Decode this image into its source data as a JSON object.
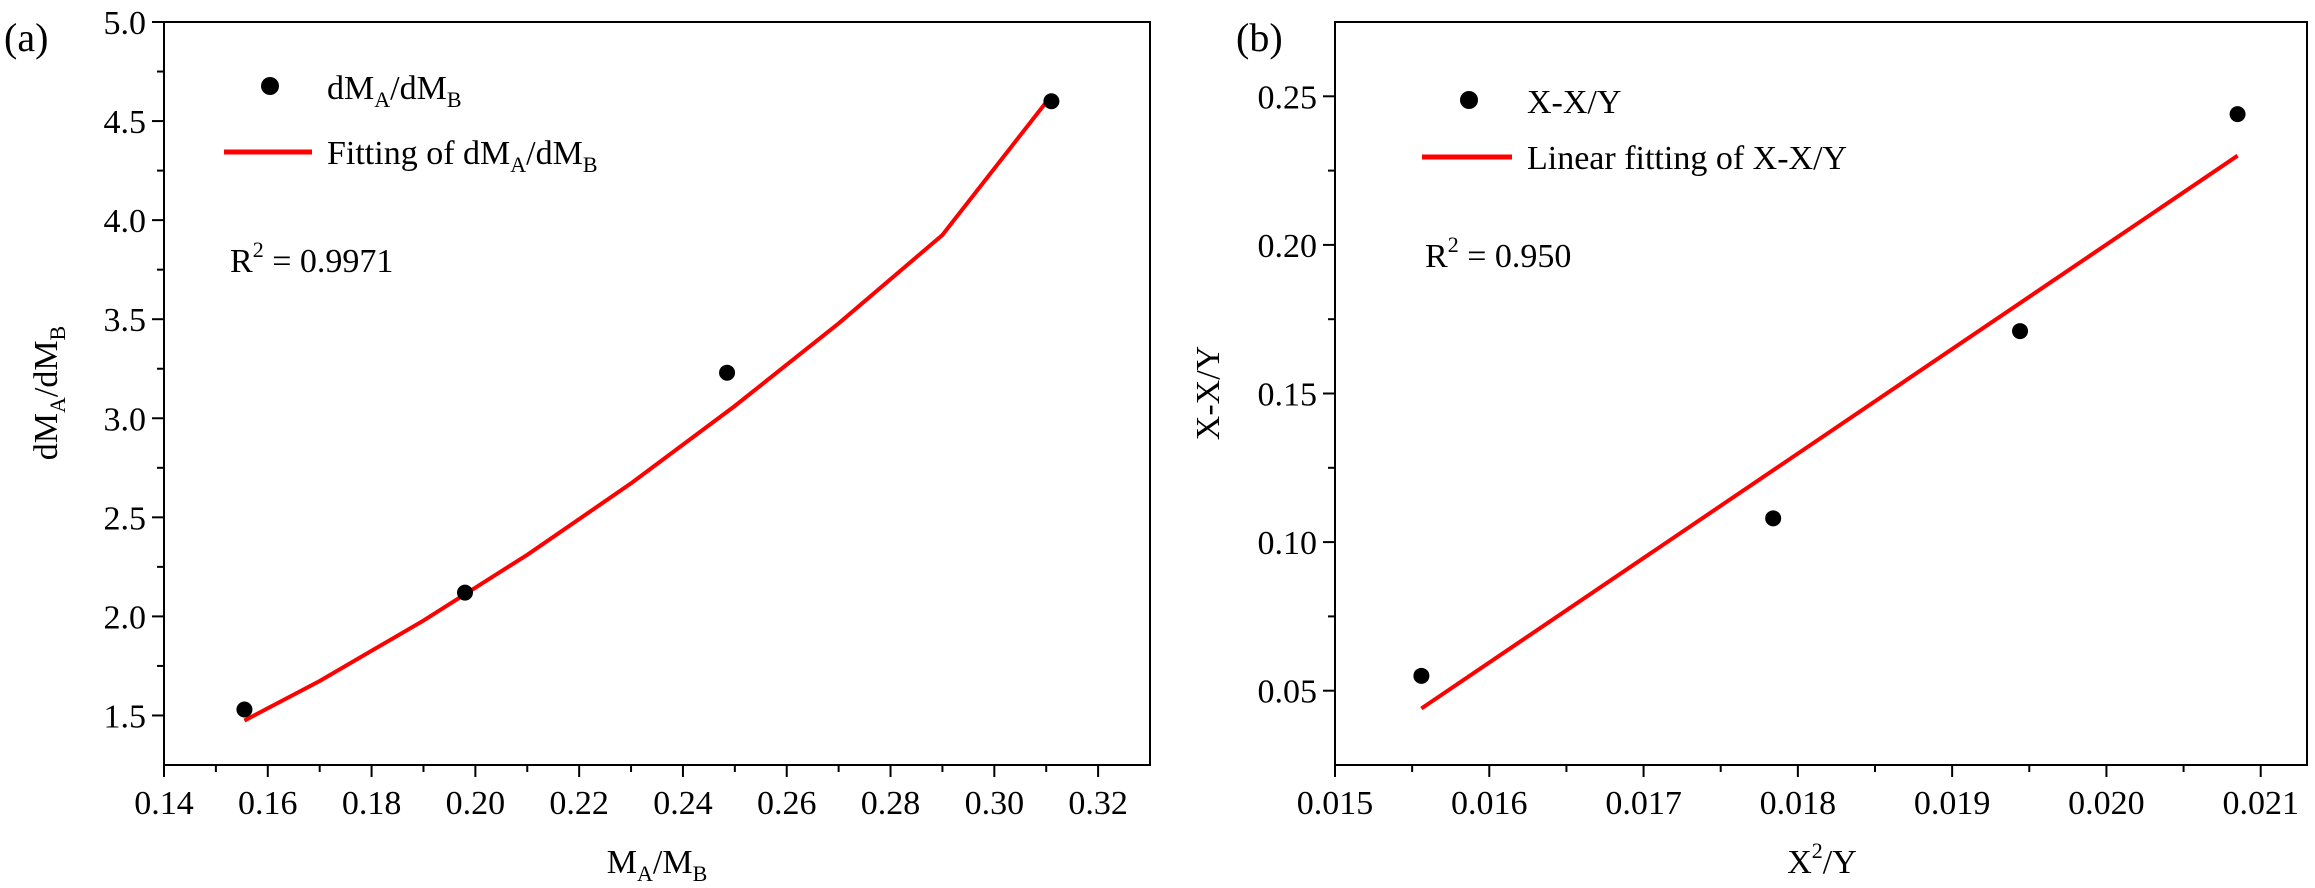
{
  "chart_data": [
    {
      "panel_label": "(a)",
      "type": "scatter",
      "xlabel": {
        "main": "M",
        "sub1": "A",
        "mid": "/M",
        "sub2": "B"
      },
      "ylabel": {
        "main": "dM",
        "sub1": "A",
        "mid": "/dM",
        "sub2": "B"
      },
      "xlim": [
        0.14,
        0.33
      ],
      "ylim": [
        1.25,
        5.0
      ],
      "xticks": [
        0.14,
        0.16,
        0.18,
        0.2,
        0.22,
        0.24,
        0.26,
        0.28,
        0.3,
        0.32
      ],
      "xtick_labels": [
        "0.14",
        "0.16",
        "0.18",
        "0.20",
        "0.22",
        "0.24",
        "0.26",
        "0.28",
        "0.30",
        "0.32"
      ],
      "yticks": [
        1.5,
        2.0,
        2.5,
        3.0,
        3.5,
        4.0,
        4.5,
        5.0
      ],
      "ytick_labels": [
        "1.5",
        "2.0",
        "2.5",
        "3.0",
        "3.5",
        "4.0",
        "4.5",
        "5.0"
      ],
      "legend_position": "top-left",
      "points": {
        "x": [
          0.1555,
          0.198,
          0.2485,
          0.311
        ],
        "y": [
          1.53,
          2.12,
          3.23,
          4.6
        ],
        "color": "#000000",
        "legend": {
          "main": "dM",
          "sub1": "A",
          "mid": "/dM",
          "sub2": "B"
        }
      },
      "fit": {
        "x": [
          0.1555,
          0.17,
          0.19,
          0.21,
          0.23,
          0.25,
          0.27,
          0.29,
          0.311
        ],
        "y": [
          1.474,
          1.674,
          1.979,
          2.311,
          2.672,
          3.062,
          3.479,
          3.925,
          4.629
        ],
        "color": "#ff0000",
        "legend_prefix": "Fitting of ",
        "legend": {
          "main": "dM",
          "sub1": "A",
          "mid": "/dM",
          "sub2": "B"
        }
      },
      "annotation": {
        "base": "R",
        "sup": "2",
        "value": " = 0.9971"
      }
    },
    {
      "panel_label": "(b)",
      "type": "scatter",
      "xlabel": {
        "main": "X",
        "sup": "2",
        "rest": "/Y"
      },
      "ylabel": "X-X/Y",
      "xlim": [
        0.015,
        0.0213
      ],
      "ylim": [
        0.025,
        0.275
      ],
      "xticks": [
        0.015,
        0.016,
        0.017,
        0.018,
        0.019,
        0.02,
        0.021
      ],
      "xtick_labels": [
        "0.015",
        "0.016",
        "0.017",
        "0.018",
        "0.019",
        "0.020",
        "0.021"
      ],
      "yticks": [
        0.05,
        0.1,
        0.15,
        0.2,
        0.25
      ],
      "ytick_labels": [
        "0.05",
        "0.10",
        "0.15",
        "0.20",
        "0.25"
      ],
      "legend_position": "top-left",
      "points": {
        "x": [
          0.01556,
          0.01784,
          0.01944,
          0.02085
        ],
        "y": [
          0.055,
          0.108,
          0.171,
          0.244
        ],
        "color": "#000000",
        "legend": "X-X/Y"
      },
      "fit": {
        "x": [
          0.01556,
          0.02085
        ],
        "y": [
          0.044,
          0.23
        ],
        "color": "#ff0000",
        "legend": "Linear fitting of X-X/Y"
      },
      "annotation": {
        "base": "R",
        "sup": "2",
        "value": " = 0.950"
      }
    }
  ]
}
